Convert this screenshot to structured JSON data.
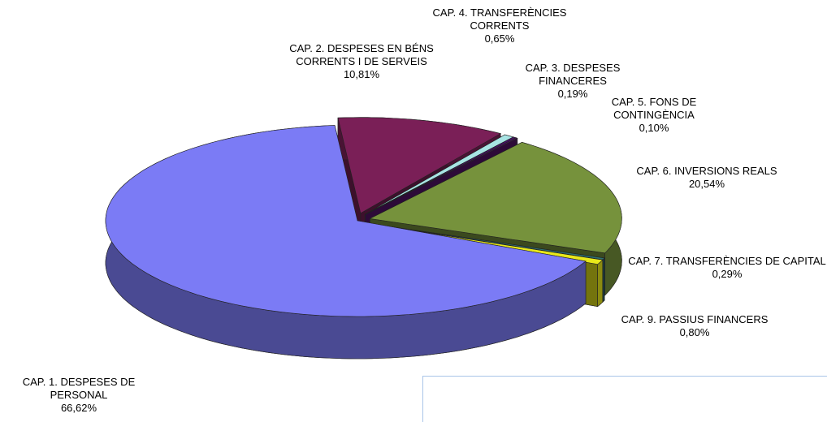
{
  "chart_data": {
    "type": "pie",
    "categories": [
      "CAP. 1. DESPESES DE PERSONAL",
      "CAP. 2. DESPESES EN BÉNS CORRENTS I DE SERVEIS",
      "CAP. 4. TRANSFERÈNCIES CORRENTS",
      "CAP. 3. DESPESES FINANCERES",
      "CAP. 5. FONS DE CONTINGÈNCIA",
      "CAP. 6. INVERSIONS REALS",
      "CAP. 7. TRANSFERÈNCIES DE CAPITAL",
      "CAP. 9. PASSIUS FINANCERS"
    ],
    "values": [
      66.62,
      10.81,
      0.65,
      0.19,
      0.1,
      20.54,
      0.29,
      0.8
    ],
    "value_labels": [
      "66,62%",
      "10,81%",
      "0,65%",
      "0,19%",
      "0,10%",
      "20,54%",
      "0,29%",
      "0,80%"
    ],
    "colors": [
      "#7b7bf5",
      "#7a1f57",
      "#a8e4e4",
      "#4b0f6e",
      "#5a1470",
      "#76923c",
      "#2e7070",
      "#e8e81a"
    ]
  }
}
